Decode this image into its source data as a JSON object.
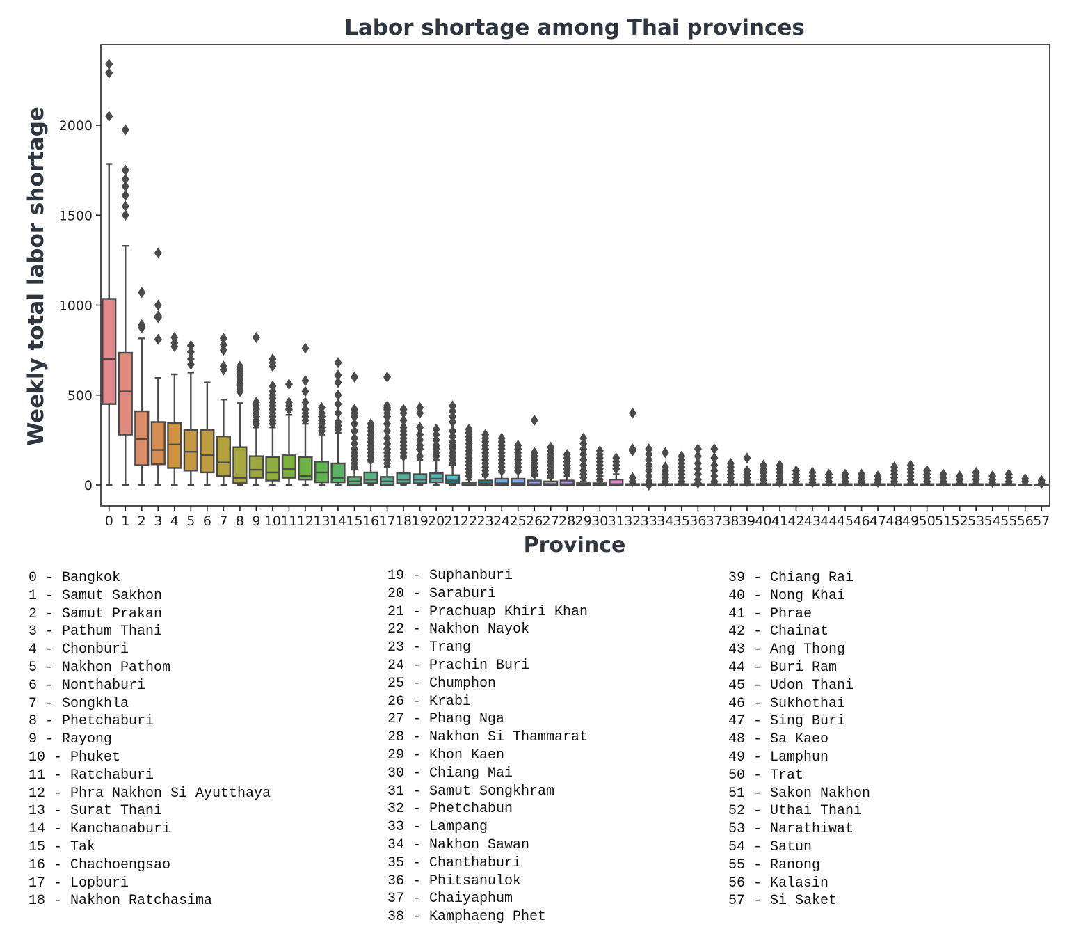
{
  "chart_data": {
    "type": "box",
    "title": "Labor shortage among Thai provinces",
    "xlabel": "Province",
    "ylabel": "Weekly total labor shortage",
    "ylim": [
      -115,
      2460
    ],
    "yticks": [
      0,
      500,
      1000,
      1500,
      2000
    ],
    "grid": false,
    "categories": [
      "0",
      "1",
      "2",
      "3",
      "4",
      "5",
      "6",
      "7",
      "8",
      "9",
      "10",
      "11",
      "12",
      "13",
      "14",
      "15",
      "16",
      "17",
      "18",
      "19",
      "20",
      "21",
      "22",
      "23",
      "24",
      "25",
      "26",
      "27",
      "28",
      "29",
      "30",
      "31",
      "32",
      "33",
      "34",
      "35",
      "36",
      "37",
      "38",
      "39",
      "40",
      "41",
      "42",
      "43",
      "44",
      "45",
      "46",
      "47",
      "48",
      "49",
      "50",
      "51",
      "52",
      "53",
      "54",
      "55",
      "56",
      "57"
    ],
    "boxes": [
      {
        "min": 0,
        "q1": 450,
        "median": 700,
        "q3": 1035,
        "max": 1785,
        "outliers": [
          2340,
          2290,
          2050
        ]
      },
      {
        "min": 0,
        "q1": 280,
        "median": 520,
        "q3": 735,
        "max": 1330,
        "outliers": [
          1975,
          1750,
          1700,
          1660,
          1610,
          1550,
          1500
        ]
      },
      {
        "min": 0,
        "q1": 110,
        "median": 255,
        "q3": 410,
        "max": 815,
        "outliers": [
          1070,
          890,
          875
        ]
      },
      {
        "min": 0,
        "q1": 115,
        "median": 195,
        "q3": 350,
        "max": 595,
        "outliers": [
          1290,
          1000,
          940,
          930,
          810
        ]
      },
      {
        "min": 0,
        "q1": 95,
        "median": 225,
        "q3": 345,
        "max": 615,
        "outliers": [
          820,
          790,
          770
        ]
      },
      {
        "min": 0,
        "q1": 80,
        "median": 185,
        "q3": 305,
        "max": 625,
        "outliers": [
          775,
          740,
          700,
          670
        ]
      },
      {
        "min": 0,
        "q1": 70,
        "median": 165,
        "q3": 305,
        "max": 570,
        "outliers": []
      },
      {
        "min": 0,
        "q1": 50,
        "median": 125,
        "q3": 270,
        "max": 475,
        "outliers": [
          815,
          780,
          750,
          660,
          640
        ]
      },
      {
        "min": 0,
        "q1": 10,
        "median": 40,
        "q3": 210,
        "max": 455,
        "outliers": [
          660,
          640,
          620,
          600,
          580,
          560,
          540,
          520
        ]
      },
      {
        "min": 0,
        "q1": 40,
        "median": 85,
        "q3": 160,
        "max": 320,
        "outliers": [
          820,
          460,
          440,
          420,
          400,
          380,
          360,
          340
        ]
      },
      {
        "min": 0,
        "q1": 25,
        "median": 70,
        "q3": 155,
        "max": 320,
        "outliers": [
          700,
          680,
          660,
          550,
          520,
          500,
          480,
          460,
          440,
          420,
          400,
          380,
          360,
          340
        ]
      },
      {
        "min": 0,
        "q1": 40,
        "median": 90,
        "q3": 165,
        "max": 390,
        "outliers": [
          560,
          460,
          440,
          420
        ]
      },
      {
        "min": 0,
        "q1": 30,
        "median": 50,
        "q3": 155,
        "max": 340,
        "outliers": [
          760,
          580,
          520,
          460,
          420,
          400,
          380,
          360
        ]
      },
      {
        "min": 0,
        "q1": 15,
        "median": 70,
        "q3": 130,
        "max": 280,
        "outliers": [
          430,
          400,
          380,
          360,
          340,
          320,
          300
        ]
      },
      {
        "min": 0,
        "q1": 15,
        "median": 40,
        "q3": 120,
        "max": 290,
        "outliers": [
          680,
          610,
          570,
          500,
          450,
          400,
          350,
          330,
          310
        ]
      },
      {
        "min": 0,
        "q1": 0,
        "median": 20,
        "q3": 45,
        "max": 90,
        "outliers": [
          600,
          420,
          400,
          380,
          340,
          300,
          260,
          230,
          200,
          180,
          160,
          140,
          120,
          100
        ]
      },
      {
        "min": 0,
        "q1": 10,
        "median": 30,
        "q3": 70,
        "max": 130,
        "outliers": [
          340,
          320,
          300,
          280,
          260,
          240,
          220,
          200,
          180,
          160,
          140
        ]
      },
      {
        "min": 0,
        "q1": 0,
        "median": 20,
        "q3": 45,
        "max": 100,
        "outliers": [
          600,
          440,
          430,
          420,
          400,
          380,
          340,
          300,
          260,
          230,
          200,
          180,
          160,
          140,
          120
        ]
      },
      {
        "min": 0,
        "q1": 10,
        "median": 30,
        "q3": 65,
        "max": 150,
        "outliers": [
          420,
          400,
          360,
          320,
          300,
          280,
          260,
          240,
          220,
          200,
          180,
          160
        ]
      },
      {
        "min": 0,
        "q1": 10,
        "median": 30,
        "q3": 60,
        "max": 140,
        "outliers": [
          430,
          400,
          320,
          280,
          250,
          220,
          200,
          160
        ]
      },
      {
        "min": 0,
        "q1": 15,
        "median": 35,
        "q3": 65,
        "max": 140,
        "outliers": [
          310,
          280,
          250,
          220,
          200,
          180,
          160
        ]
      },
      {
        "min": 0,
        "q1": 10,
        "median": 25,
        "q3": 55,
        "max": 110,
        "outliers": [
          440,
          410,
          380,
          350,
          300,
          270,
          240,
          220,
          200,
          180,
          160,
          140,
          120
        ]
      },
      {
        "min": 0,
        "q1": 0,
        "median": 5,
        "q3": 15,
        "max": 30,
        "outliers": [
          310,
          290,
          270,
          250,
          230,
          210,
          190,
          170,
          150,
          130,
          110,
          90,
          70,
          50
        ]
      },
      {
        "min": 0,
        "q1": 0,
        "median": 10,
        "q3": 25,
        "max": 50,
        "outliers": [
          280,
          260,
          240,
          220,
          200,
          180,
          160,
          140,
          120,
          100,
          80,
          60
        ]
      },
      {
        "min": 0,
        "q1": 0,
        "median": 10,
        "q3": 35,
        "max": 70,
        "outliers": [
          260,
          240,
          220,
          200,
          180,
          160,
          140,
          120,
          100,
          80
        ]
      },
      {
        "min": 0,
        "q1": 0,
        "median": 10,
        "q3": 35,
        "max": 70,
        "outliers": [
          220,
          200,
          180,
          160,
          140,
          120,
          100,
          80
        ]
      },
      {
        "min": 0,
        "q1": 0,
        "median": 5,
        "q3": 25,
        "max": 50,
        "outliers": [
          360,
          180,
          160,
          140,
          120,
          100,
          80,
          60
        ]
      },
      {
        "min": 0,
        "q1": 0,
        "median": 5,
        "q3": 20,
        "max": 40,
        "outliers": [
          210,
          190,
          170,
          150,
          130,
          110,
          90,
          70,
          50
        ]
      },
      {
        "min": 0,
        "q1": 0,
        "median": 5,
        "q3": 25,
        "max": 50,
        "outliers": [
          170,
          150,
          130,
          110,
          90,
          70
        ]
      },
      {
        "min": 0,
        "q1": 0,
        "median": 3,
        "q3": 10,
        "max": 20,
        "outliers": [
          260,
          230,
          200,
          170,
          140,
          110,
          80,
          60,
          40
        ]
      },
      {
        "min": 0,
        "q1": 0,
        "median": 3,
        "q3": 10,
        "max": 20,
        "outliers": [
          190,
          170,
          150,
          130,
          110,
          90,
          70,
          50,
          30
        ]
      },
      {
        "min": 0,
        "q1": 0,
        "median": 5,
        "q3": 30,
        "max": 60,
        "outliers": [
          150,
          130,
          110,
          90
        ]
      },
      {
        "min": 0,
        "q1": 0,
        "median": 0,
        "q3": 5,
        "max": 10,
        "outliers": [
          400,
          200,
          190,
          40,
          20
        ]
      },
      {
        "min": 0,
        "q1": 0,
        "median": 0,
        "q3": 5,
        "max": 10,
        "outliers": [
          200,
          170,
          140,
          110,
          80,
          50,
          20,
          0
        ]
      },
      {
        "min": 0,
        "q1": 0,
        "median": 0,
        "q3": 5,
        "max": 10,
        "outliers": [
          180,
          100,
          80,
          60,
          40,
          20
        ]
      },
      {
        "min": 0,
        "q1": 0,
        "median": 0,
        "q3": 5,
        "max": 10,
        "outliers": [
          160,
          140,
          120,
          100,
          80,
          60,
          40,
          20
        ]
      },
      {
        "min": 0,
        "q1": 0,
        "median": 0,
        "q3": 5,
        "max": 10,
        "outliers": [
          200,
          160,
          120,
          90,
          60,
          30,
          10
        ]
      },
      {
        "min": 0,
        "q1": 0,
        "median": 0,
        "q3": 5,
        "max": 10,
        "outliers": [
          200,
          150,
          110,
          80,
          50,
          20
        ]
      },
      {
        "min": 0,
        "q1": 0,
        "median": 0,
        "q3": 5,
        "max": 10,
        "outliers": [
          120,
          100,
          80,
          60,
          40,
          20
        ]
      },
      {
        "min": 0,
        "q1": 0,
        "median": 0,
        "q3": 5,
        "max": 10,
        "outliers": [
          150,
          80,
          60,
          40,
          20
        ]
      },
      {
        "min": 0,
        "q1": 0,
        "median": 0,
        "q3": 5,
        "max": 10,
        "outliers": [
          110,
          90,
          70,
          50,
          30
        ]
      },
      {
        "min": 0,
        "q1": 0,
        "median": 0,
        "q3": 5,
        "max": 10,
        "outliers": [
          110,
          90,
          70,
          50,
          30,
          15
        ]
      },
      {
        "min": 0,
        "q1": 0,
        "median": 0,
        "q3": 5,
        "max": 10,
        "outliers": [
          80,
          60,
          40,
          20
        ]
      },
      {
        "min": 0,
        "q1": 0,
        "median": 0,
        "q3": 5,
        "max": 10,
        "outliers": [
          70,
          50,
          30,
          15
        ]
      },
      {
        "min": 0,
        "q1": 0,
        "median": 0,
        "q3": 5,
        "max": 10,
        "outliers": [
          60,
          40,
          20
        ]
      },
      {
        "min": 0,
        "q1": 0,
        "median": 0,
        "q3": 5,
        "max": 10,
        "outliers": [
          60,
          40,
          20
        ]
      },
      {
        "min": 0,
        "q1": 0,
        "median": 0,
        "q3": 5,
        "max": 10,
        "outliers": [
          60,
          40,
          20
        ]
      },
      {
        "min": 0,
        "q1": 0,
        "median": 0,
        "q3": 5,
        "max": 10,
        "outliers": [
          50,
          30,
          15
        ]
      },
      {
        "min": 0,
        "q1": 0,
        "median": 0,
        "q3": 5,
        "max": 10,
        "outliers": [
          100,
          80,
          60,
          40,
          20
        ]
      },
      {
        "min": 0,
        "q1": 0,
        "median": 0,
        "q3": 5,
        "max": 10,
        "outliers": [
          110,
          90,
          70,
          50,
          30
        ]
      },
      {
        "min": 0,
        "q1": 0,
        "median": 0,
        "q3": 5,
        "max": 10,
        "outliers": [
          80,
          60,
          40,
          20
        ]
      },
      {
        "min": 0,
        "q1": 0,
        "median": 0,
        "q3": 5,
        "max": 10,
        "outliers": [
          60,
          40,
          20
        ]
      },
      {
        "min": 0,
        "q1": 0,
        "median": 0,
        "q3": 5,
        "max": 10,
        "outliers": [
          50,
          30
        ]
      },
      {
        "min": 0,
        "q1": 0,
        "median": 0,
        "q3": 5,
        "max": 10,
        "outliers": [
          70,
          50,
          30
        ]
      },
      {
        "min": 0,
        "q1": 0,
        "median": 0,
        "q3": 5,
        "max": 10,
        "outliers": [
          50,
          30,
          15
        ]
      },
      {
        "min": 0,
        "q1": 0,
        "median": 0,
        "q3": 5,
        "max": 10,
        "outliers": [
          60,
          40,
          20
        ]
      },
      {
        "min": 0,
        "q1": 0,
        "median": 0,
        "q3": 3,
        "max": 5,
        "outliers": [
          35,
          20
        ]
      },
      {
        "min": 0,
        "q1": 0,
        "median": 0,
        "q3": 3,
        "max": 5,
        "outliers": [
          25,
          10
        ]
      }
    ],
    "colors": [
      "#e3898f",
      "#df8a7c",
      "#d98c66",
      "#d58e52",
      "#cf933f",
      "#c69843",
      "#bd9d3f",
      "#b4a13c",
      "#a8a63c",
      "#9ba93c",
      "#8dad3c",
      "#7eb03d",
      "#6db341",
      "#5fb450",
      "#5ab464",
      "#57b474",
      "#55b382",
      "#54b38f",
      "#52b39a",
      "#51b3a6",
      "#50b4b2",
      "#52b5bf",
      "#56b6cd",
      "#5db4da",
      "#6caee3",
      "#80a8ea",
      "#94a1ef",
      "#a89aef",
      "#b993eb",
      "#c88ee5",
      "#d48bdc",
      "#df88d1",
      "#e589c4",
      "#e88bb6"
    ]
  },
  "legend": {
    "col1": [
      "0 - Bangkok",
      "1 - Samut Sakhon",
      "2 - Samut Prakan",
      "3 - Pathum Thani",
      "4 - Chonburi",
      "5 - Nakhon Pathom",
      "6 - Nonthaburi",
      "7 - Songkhla",
      "8 - Phetchaburi",
      "9 - Rayong",
      "10 - Phuket",
      "11 - Ratchaburi",
      "12 - Phra Nakhon Si Ayutthaya",
      "13 - Surat Thani",
      "14 - Kanchanaburi",
      "15 - Tak",
      "16 - Chachoengsao",
      "17 - Lopburi",
      "18 - Nakhon Ratchasima"
    ],
    "col2": [
      "19 - Suphanburi",
      "20 - Saraburi",
      "21 - Prachuap Khiri Khan",
      "22 - Nakhon Nayok",
      "23 - Trang",
      "24 - Prachin Buri",
      "25 - Chumphon",
      "26 - Krabi",
      "27 - Phang Nga",
      "28 - Nakhon Si Thammarat",
      "29 - Khon Kaen",
      "30 - Chiang Mai",
      "31 - Samut Songkhram",
      "32 - Phetchabun",
      "33 - Lampang",
      "34 - Nakhon Sawan",
      "35 - Chanthaburi",
      "36 - Phitsanulok",
      "37 - Chaiyaphum",
      "38 - Kamphaeng Phet"
    ],
    "col3": [
      "39 - Chiang Rai",
      "40 - Nong Khai",
      "41 - Phrae",
      "42 - Chainat",
      "43 - Ang Thong",
      "44 - Buri Ram",
      "45 - Udon Thani",
      "46 - Sukhothai",
      "47 - Sing Buri",
      "48 - Sa Kaeo",
      "49 - Lamphun",
      "50 - Trat",
      "51 - Sakon Nakhon",
      "52 - Uthai Thani",
      "53 - Narathiwat",
      "54 - Satun",
      "55 - Ranong",
      "56 - Kalasin",
      "57 - Si Saket"
    ]
  }
}
